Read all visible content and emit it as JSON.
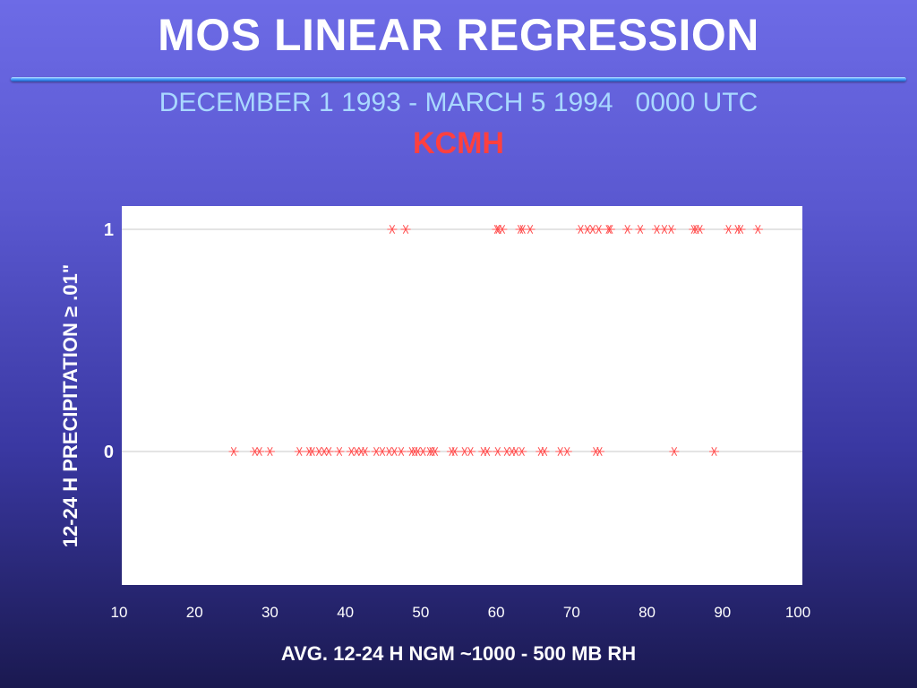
{
  "slide": {
    "title": "MOS LINEAR REGRESSION",
    "subtitle": "DECEMBER 1 1993 - MARCH 5 1994   0000 UTC",
    "station": "KCMH"
  },
  "colors": {
    "title": "#ffffff",
    "subtitle": "#a9d8ff",
    "station": "#ff4040",
    "marker": "#ff4d4d",
    "gridline": "#c8c8c8",
    "plot_background": "#ffffff"
  },
  "chart_data": {
    "type": "scatter",
    "title": "",
    "xlabel": "AVG. 12-24 H NGM ~1000 - 500 MB RH",
    "ylabel": "12-24 H PRECIPITATION ≥ .01\"",
    "xlim": [
      10,
      100
    ],
    "ylim": [
      -0.6,
      1.1
    ],
    "x_ticks": [
      10,
      20,
      30,
      40,
      50,
      60,
      70,
      80,
      90,
      100
    ],
    "y_ticks": [
      0,
      1
    ],
    "grid": "horizontal at y ticks",
    "marker": "asterisk",
    "legend": "none",
    "series": [
      {
        "values_y": 1,
        "x": [
          46.2,
          48.0,
          60.1,
          60.3,
          60.8,
          63.2,
          63.5,
          64.5,
          71.2,
          72.1,
          72.8,
          73.6,
          74.9,
          75.1,
          77.4,
          79.1,
          81.3,
          82.3,
          83.2,
          86.2,
          86.5,
          87.0,
          90.8,
          92.0,
          92.4,
          94.7
        ]
      },
      {
        "values_y": 0,
        "x": [
          25.2,
          28.0,
          28.6,
          30.0,
          33.9,
          35.2,
          35.6,
          36.5,
          37.2,
          37.8,
          39.2,
          40.8,
          41.5,
          42.1,
          42.6,
          44.1,
          44.9,
          45.8,
          46.5,
          47.4,
          48.8,
          49.2,
          49.6,
          50.3,
          51.2,
          51.5,
          51.9,
          54.1,
          54.5,
          55.8,
          56.6,
          58.3,
          58.8,
          60.2,
          61.4,
          62.1,
          62.6,
          63.4,
          65.9,
          66.4,
          68.5,
          69.4,
          73.2,
          73.7,
          83.6,
          88.9
        ]
      }
    ]
  }
}
